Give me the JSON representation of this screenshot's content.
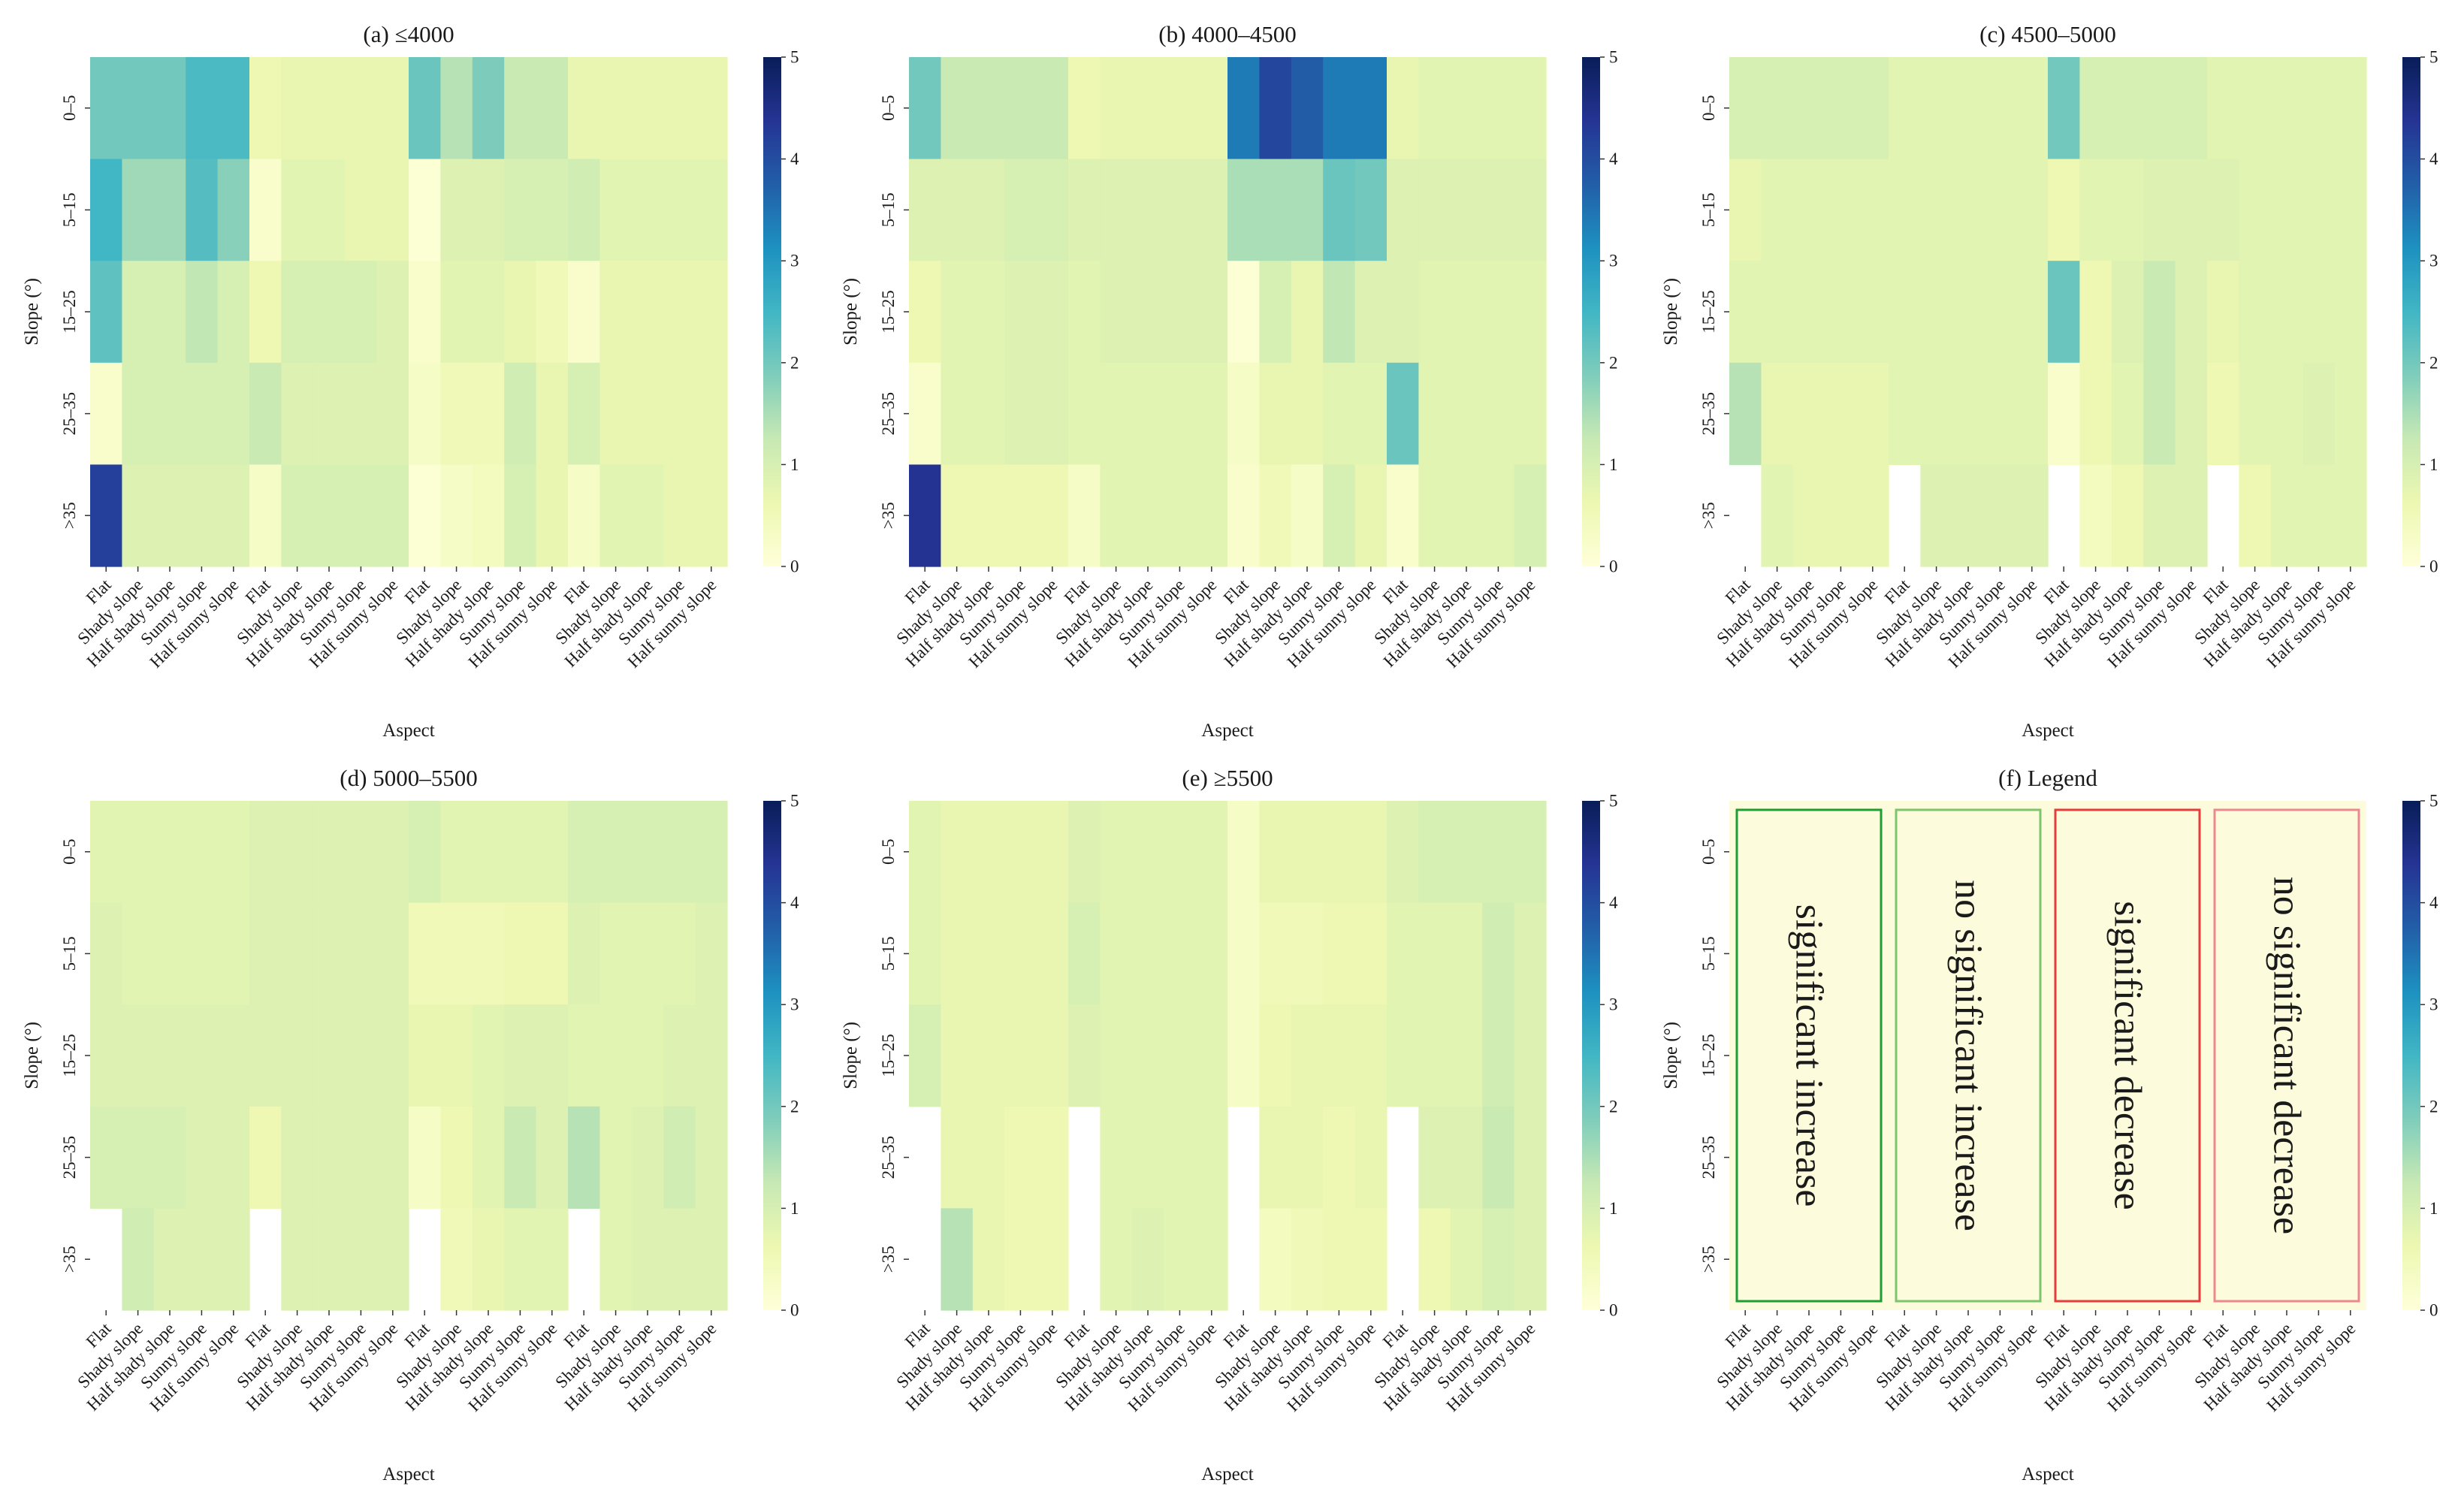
{
  "chart_data": {
    "type": "heatmap",
    "colormap": "YlGnBu",
    "colorbar_range": [
      0,
      5
    ],
    "colorbar_ticks": [
      "0",
      "1",
      "2",
      "3",
      "4",
      "5"
    ],
    "ylabel": "Slope (°)",
    "xlabel": "Aspect",
    "rows": [
      "0–5",
      "5–15",
      "15–25",
      "25–35",
      ">35"
    ],
    "columns": [
      "Flat",
      "Shady slope",
      "Half shady slope",
      "Sunny slope",
      "Half sunny slope",
      "Flat",
      "Shady slope",
      "Half shady slope",
      "Sunny slope",
      "Half sunny slope",
      "Flat",
      "Shady slope",
      "Half shady slope",
      "Sunny slope",
      "Half sunny slope",
      "Flat",
      "Shady slope",
      "Half shady slope",
      "Sunny slope",
      "Half sunny slope"
    ],
    "panels": [
      {
        "title": "(a) ≤4000",
        "values": [
          [
            2.0,
            2.0,
            2.0,
            2.4,
            2.4,
            0.6,
            0.7,
            0.7,
            0.7,
            0.7,
            2.1,
            1.4,
            1.9,
            1.2,
            1.2,
            0.7,
            0.7,
            0.7,
            0.7,
            0.7
          ],
          [
            2.5,
            1.6,
            1.6,
            2.3,
            1.8,
            0.2,
            0.8,
            0.8,
            0.7,
            0.7,
            0.1,
            0.9,
            0.9,
            1.0,
            1.0,
            1.1,
            0.8,
            0.8,
            0.8,
            0.8
          ],
          [
            2.2,
            1.0,
            1.0,
            1.3,
            1.0,
            0.6,
            1.0,
            1.0,
            1.0,
            0.9,
            0.2,
            0.8,
            0.8,
            0.7,
            0.5,
            0.2,
            0.7,
            0.7,
            0.7,
            0.7
          ],
          [
            0.2,
            1.0,
            1.0,
            1.0,
            1.0,
            1.2,
            0.9,
            0.9,
            0.9,
            0.9,
            0.3,
            0.5,
            0.5,
            1.1,
            0.7,
            1.0,
            0.7,
            0.7,
            0.7,
            0.7
          ],
          [
            4.2,
            0.9,
            0.9,
            0.9,
            0.9,
            0.3,
            1.0,
            1.0,
            1.0,
            1.0,
            0.1,
            0.3,
            0.4,
            1.0,
            0.7,
            0.3,
            0.8,
            0.8,
            0.7,
            0.7
          ]
        ]
      },
      {
        "title": "(b) 4000–4500",
        "values": [
          [
            2.0,
            1.2,
            1.2,
            1.2,
            1.2,
            0.6,
            0.7,
            0.7,
            0.7,
            0.7,
            3.4,
            4.1,
            3.8,
            3.4,
            3.4,
            0.7,
            0.8,
            0.8,
            0.8,
            0.8
          ],
          [
            0.9,
            0.9,
            0.9,
            1.0,
            1.0,
            0.9,
            0.9,
            0.9,
            0.9,
            0.9,
            1.5,
            1.5,
            1.5,
            2.1,
            2.0,
            0.9,
            0.9,
            0.9,
            0.9,
            0.9
          ],
          [
            0.6,
            0.8,
            0.8,
            0.9,
            0.9,
            0.8,
            0.9,
            0.9,
            0.9,
            0.9,
            0.1,
            1.0,
            0.7,
            1.3,
            0.9,
            0.9,
            0.8,
            0.8,
            0.8,
            0.8
          ],
          [
            0.2,
            0.8,
            0.8,
            0.9,
            0.9,
            0.8,
            0.8,
            0.8,
            0.8,
            0.8,
            0.3,
            0.7,
            0.7,
            0.8,
            0.8,
            2.1,
            0.8,
            0.8,
            0.8,
            0.8
          ],
          [
            4.4,
            0.6,
            0.6,
            0.6,
            0.6,
            0.3,
            0.8,
            0.8,
            0.8,
            0.8,
            0.2,
            0.5,
            0.3,
            1.0,
            0.7,
            0.2,
            0.8,
            0.8,
            0.8,
            1.0
          ]
        ]
      },
      {
        "title": "(c) 4500–5000",
        "values": [
          [
            1.0,
            1.0,
            1.0,
            1.0,
            1.0,
            0.8,
            0.8,
            0.8,
            0.8,
            0.8,
            2.0,
            1.0,
            1.0,
            1.0,
            1.0,
            0.8,
            0.8,
            0.8,
            0.8,
            0.8
          ],
          [
            0.7,
            0.8,
            0.8,
            0.8,
            0.8,
            0.8,
            0.8,
            0.8,
            0.8,
            0.8,
            0.6,
            0.8,
            0.8,
            0.9,
            0.9,
            0.9,
            0.8,
            0.8,
            0.8,
            0.8
          ],
          [
            0.8,
            0.8,
            0.8,
            0.8,
            0.8,
            0.8,
            0.8,
            0.8,
            0.8,
            0.8,
            2.1,
            0.6,
            0.9,
            1.2,
            0.9,
            0.7,
            0.8,
            0.8,
            0.8,
            0.8
          ],
          [
            1.4,
            0.7,
            0.7,
            0.7,
            0.7,
            0.8,
            0.8,
            0.8,
            0.8,
            0.8,
            0.2,
            0.6,
            0.8,
            1.2,
            0.9,
            0.6,
            0.8,
            0.8,
            0.9,
            0.8
          ],
          [
            null,
            0.8,
            0.7,
            0.7,
            0.7,
            null,
            0.9,
            0.9,
            0.9,
            0.9,
            null,
            0.4,
            0.6,
            0.9,
            0.9,
            null,
            0.6,
            0.8,
            0.8,
            0.8
          ]
        ]
      },
      {
        "title": "(d) 5000–5500",
        "values": [
          [
            0.8,
            0.8,
            0.8,
            0.8,
            0.8,
            0.9,
            0.9,
            0.9,
            0.9,
            0.9,
            1.0,
            0.8,
            0.8,
            0.8,
            0.8,
            1.0,
            1.0,
            1.0,
            1.0,
            1.0
          ],
          [
            0.9,
            0.8,
            0.8,
            0.8,
            0.8,
            0.9,
            0.9,
            0.9,
            0.9,
            0.9,
            0.5,
            0.5,
            0.5,
            0.6,
            0.6,
            0.9,
            0.8,
            0.8,
            0.8,
            0.9
          ],
          [
            0.9,
            0.9,
            0.9,
            0.9,
            0.9,
            0.9,
            0.9,
            0.9,
            0.9,
            0.9,
            0.7,
            0.7,
            0.8,
            0.9,
            0.9,
            0.8,
            0.8,
            0.8,
            0.9,
            0.9
          ],
          [
            1.0,
            1.0,
            1.0,
            0.9,
            0.9,
            0.6,
            0.9,
            0.9,
            0.9,
            0.9,
            0.3,
            0.6,
            0.8,
            1.2,
            0.9,
            1.4,
            0.8,
            0.9,
            1.1,
            0.9
          ],
          [
            null,
            1.1,
            0.9,
            0.9,
            0.9,
            null,
            0.9,
            0.9,
            0.9,
            0.9,
            null,
            0.5,
            0.7,
            0.8,
            0.8,
            null,
            0.8,
            0.9,
            0.9,
            0.9
          ]
        ]
      },
      {
        "title": "(e) ≥5500",
        "values": [
          [
            0.8,
            0.7,
            0.7,
            0.7,
            0.7,
            0.9,
            0.8,
            0.8,
            0.8,
            0.8,
            0.3,
            0.7,
            0.7,
            0.7,
            0.7,
            0.9,
            1.0,
            1.0,
            1.0,
            1.0
          ],
          [
            0.8,
            0.7,
            0.7,
            0.7,
            0.7,
            1.0,
            0.8,
            0.8,
            0.8,
            0.8,
            0.3,
            0.5,
            0.5,
            0.6,
            0.6,
            0.8,
            0.8,
            0.8,
            1.1,
            0.9
          ],
          [
            1.0,
            0.7,
            0.7,
            0.7,
            0.7,
            0.9,
            0.8,
            0.8,
            0.8,
            0.8,
            0.3,
            0.6,
            0.7,
            0.7,
            0.7,
            0.8,
            0.8,
            0.8,
            1.1,
            0.9
          ],
          [
            null,
            0.7,
            0.7,
            0.6,
            0.6,
            null,
            0.8,
            0.8,
            0.8,
            0.8,
            null,
            0.7,
            0.7,
            0.6,
            0.7,
            null,
            0.9,
            0.9,
            1.2,
            0.9
          ],
          [
            null,
            1.4,
            0.7,
            0.6,
            0.6,
            null,
            0.8,
            0.9,
            0.8,
            0.8,
            null,
            0.4,
            0.5,
            0.6,
            0.6,
            null,
            0.6,
            0.8,
            1.0,
            0.9
          ]
        ]
      },
      {
        "title": "(f) Legend",
        "legend_background": "#fcfcdc",
        "legend_boxes": [
          {
            "label": "significant increase",
            "border_color": "#1e9e32"
          },
          {
            "label": "no significant increase",
            "border_color": "#7cc56c"
          },
          {
            "label": "significant decrease",
            "border_color": "#e83c3c"
          },
          {
            "label": "no significant decrease",
            "border_color": "#ee8890"
          }
        ]
      }
    ]
  }
}
